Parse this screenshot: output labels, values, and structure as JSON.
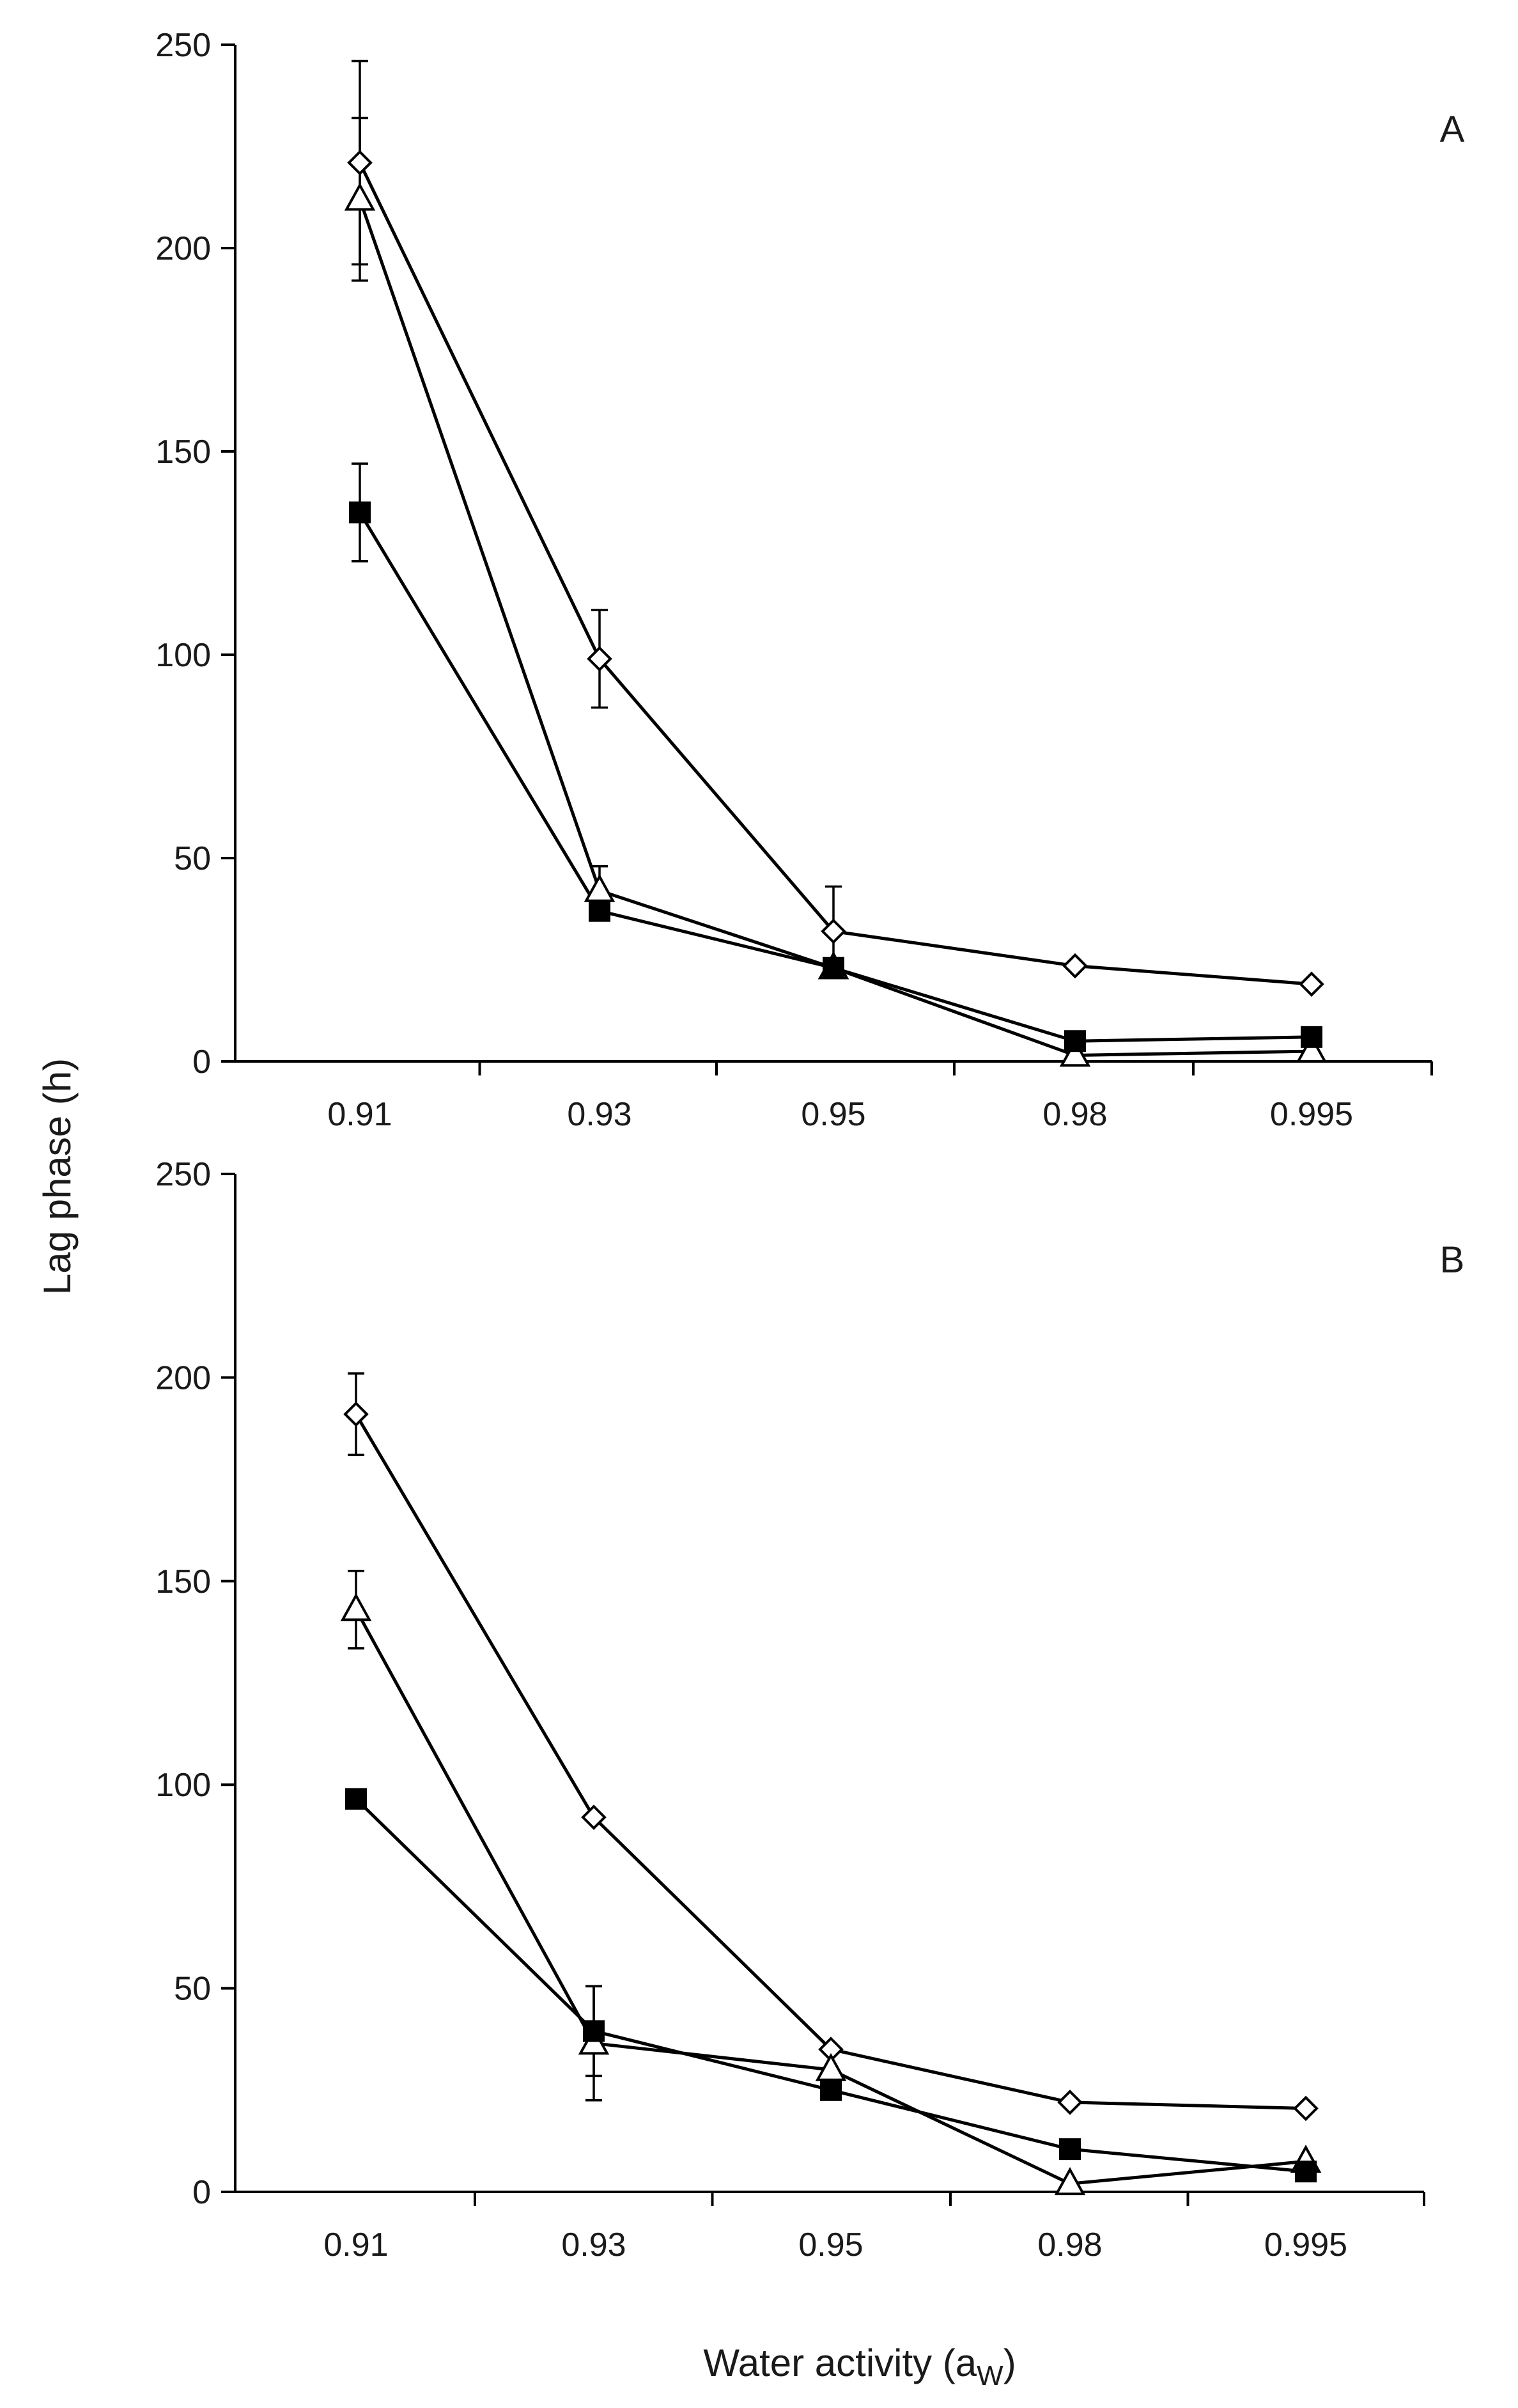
{
  "figure": {
    "ylabel": "Lag phase (h)",
    "xlabel_main": "Water activity (a",
    "xlabel_sub": "W",
    "xlabel_close": ")"
  },
  "chart_data": [
    {
      "type": "line",
      "panel": "A",
      "categories": [
        "0.91",
        "0.93",
        "0.95",
        "0.98",
        "0.995"
      ],
      "ylim": [
        0,
        250
      ],
      "yticks": [
        "0",
        "50",
        "100",
        "150",
        "200",
        "250"
      ],
      "series": [
        {
          "name": "open diamond",
          "marker": "diamond",
          "values": [
            221,
            99,
            32,
            23.5,
            19
          ],
          "errors": [
            25,
            12,
            11,
            0,
            0
          ]
        },
        {
          "name": "open triangle",
          "marker": "triangle",
          "values": [
            212,
            42,
            23,
            1.5,
            2.5
          ],
          "errors": [
            20,
            6,
            0,
            0,
            0
          ]
        },
        {
          "name": "filled square",
          "marker": "square",
          "values": [
            135,
            37,
            23,
            5,
            6
          ],
          "errors": [
            12,
            0,
            0,
            0,
            0
          ]
        }
      ]
    },
    {
      "type": "line",
      "panel": "B",
      "categories": [
        "0.91",
        "0.93",
        "0.95",
        "0.98",
        "0.995"
      ],
      "ylim": [
        0,
        250
      ],
      "yticks": [
        "0",
        "50",
        "100",
        "150",
        "200",
        "250"
      ],
      "series": [
        {
          "name": "open diamond",
          "marker": "diamond",
          "values": [
            191,
            92,
            35,
            22,
            20.5
          ],
          "errors": [
            10,
            0,
            0,
            0,
            0
          ]
        },
        {
          "name": "open triangle",
          "marker": "triangle",
          "values": [
            143,
            36.5,
            30,
            2,
            7.5
          ],
          "errors": [
            9.5,
            14,
            0,
            0,
            0
          ]
        },
        {
          "name": "filled square",
          "marker": "square",
          "values": [
            96.5,
            39.5,
            25,
            10.5,
            5
          ],
          "errors": [
            0,
            11,
            0,
            0,
            0
          ]
        }
      ]
    }
  ]
}
